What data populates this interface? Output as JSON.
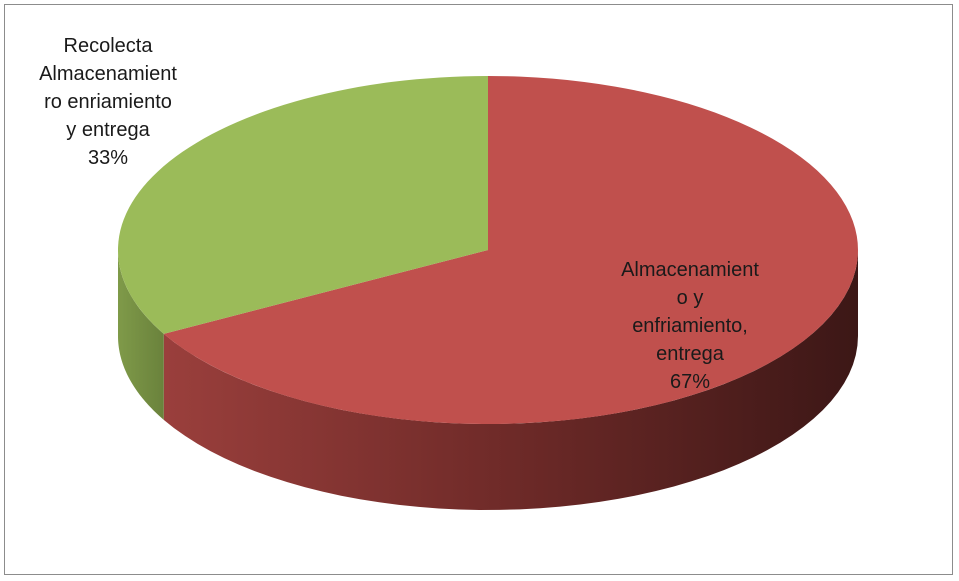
{
  "chart_data": {
    "type": "pie",
    "variant": "3d",
    "title": "",
    "slices": [
      {
        "label_lines": [
          "Almacenamient",
          "o y",
          "enfriamiento,",
          "entrega"
        ],
        "percent_label": "67%",
        "value": 67,
        "color": "#c0504d"
      },
      {
        "label_lines": [
          "Recolecta",
          "Almacenamient",
          "ro enriamiento",
          "y entrega"
        ],
        "percent_label": "33%",
        "value": 33,
        "color": "#9bbb59"
      }
    ],
    "legend": "none"
  }
}
